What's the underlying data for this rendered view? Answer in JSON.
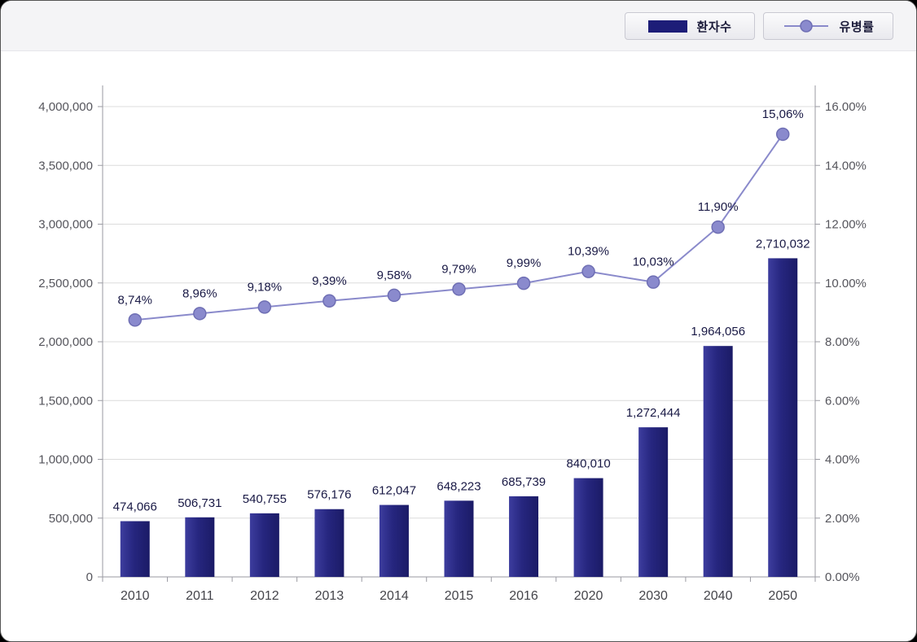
{
  "legend": {
    "items": [
      {
        "label": "환자수",
        "type": "bar",
        "color": "#1d1d78"
      },
      {
        "label": "유병률",
        "type": "line",
        "color": "#8a8acb"
      }
    ]
  },
  "colors": {
    "bar_main": "#26267f",
    "bar_light": "#3d3d9e",
    "bar_dark": "#1b1b66",
    "line": "#8a8acb",
    "marker_fill": "#8a8acd",
    "marker_stroke": "#6f6fb4",
    "gridline": "#dcdcdc",
    "axis": "#9a9aa2",
    "tick_text": "#55555c",
    "xlabel_text": "#44444a",
    "value_label": "#191945"
  },
  "chart_data": {
    "type": "combo-bar-line",
    "title": "",
    "categories": [
      "2010",
      "2011",
      "2012",
      "2013",
      "2014",
      "2015",
      "2016",
      "2020",
      "2030",
      "2040",
      "2050"
    ],
    "series": [
      {
        "name": "환자수",
        "type": "bar",
        "axis": "left",
        "values": [
          474066,
          506731,
          540755,
          576176,
          612047,
          648223,
          685739,
          840010,
          1272444,
          1964056,
          2710032
        ],
        "labels": [
          "474,066",
          "506,731",
          "540,755",
          "576,176",
          "612,047",
          "648,223",
          "685,739",
          "840,010",
          "1,272,444",
          "1,964,056",
          "2,710,032"
        ]
      },
      {
        "name": "유병률",
        "type": "line",
        "axis": "right",
        "values": [
          8.74,
          8.96,
          9.18,
          9.39,
          9.58,
          9.79,
          9.99,
          10.39,
          10.03,
          11.9,
          15.06
        ],
        "labels": [
          "8,74%",
          "8,96%",
          "9,18%",
          "9,39%",
          "9,58%",
          "9,79%",
          "9,99%",
          "10,39%",
          "10,03%",
          "11,90%",
          "15,06%"
        ]
      }
    ],
    "left_axis": {
      "min": 0,
      "max": 4000000,
      "step": 500000,
      "ticks": [
        "4,000,000",
        "3,500,000",
        "3,000,000",
        "2,500,000",
        "2,000,000",
        "1,500,000",
        "1,000,000",
        "500,000",
        "0"
      ]
    },
    "right_axis": {
      "min": 0,
      "max": 16,
      "step": 2,
      "ticks": [
        "16.00%",
        "14.00%",
        "12.00%",
        "10.00%",
        "8.00%",
        "6.00%",
        "4.00%",
        "2.00%",
        "0.00%"
      ]
    },
    "grid": true,
    "legend_position": "top-right"
  }
}
